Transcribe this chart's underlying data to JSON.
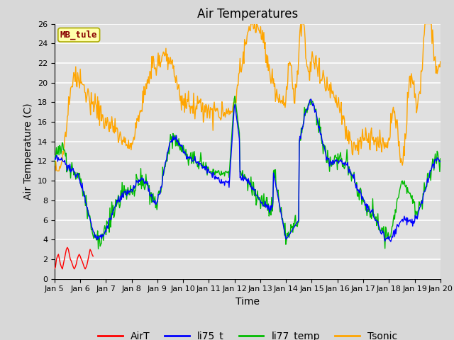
{
  "title": "Air Temperatures",
  "xlabel": "Time",
  "ylabel": "Air Temperature (C)",
  "ylim": [
    0,
    26
  ],
  "xlim": [
    0,
    15
  ],
  "xtick_labels": [
    "Jan 5",
    "Jan 6",
    "Jan 7",
    "Jan 8",
    "Jan 9",
    "Jan 10",
    "Jan 11",
    "Jan 12",
    "Jan 13",
    "Jan 14",
    "Jan 15",
    "Jan 16",
    "Jan 17",
    "Jan 18",
    "Jan 19",
    "Jan 20"
  ],
  "colors": {
    "AirT": "#ff0000",
    "li75_t": "#0000ff",
    "li77_temp": "#00bb00",
    "Tsonic": "#ffa500"
  },
  "watermark": "MB_tule",
  "watermark_color": "#880000",
  "watermark_bg": "#ffffaa",
  "watermark_edge": "#aaaa00",
  "fig_bg": "#d8d8d8",
  "plot_bg": "#e0e0e0",
  "title_fontsize": 12,
  "axis_fontsize": 10,
  "tick_fontsize": 8,
  "legend_fontsize": 10
}
